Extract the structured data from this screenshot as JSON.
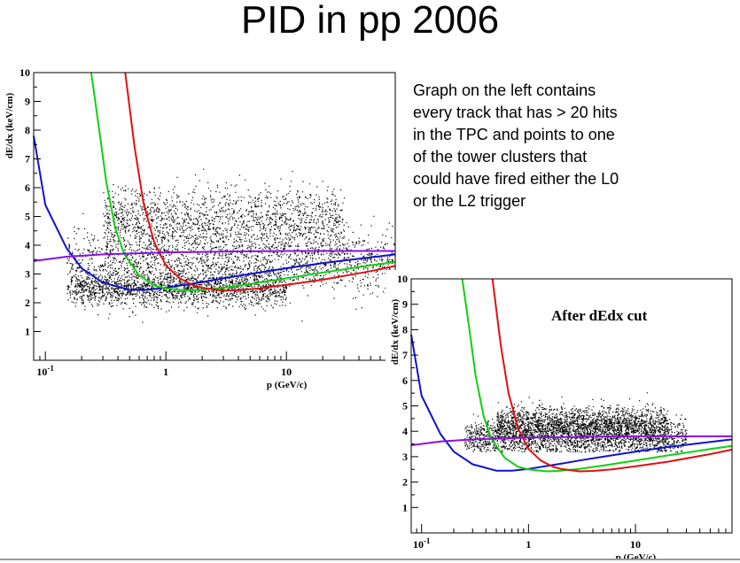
{
  "slide": {
    "title": "PID in pp 2006",
    "description_lines": [
      "Graph on the left contains",
      "every track that has > 20 hits",
      "in the TPC and points to one",
      "of the tower clusters that",
      "could have fired either the L0",
      "or the L2 trigger"
    ]
  },
  "colors": {
    "points": "#000000",
    "blue": "#1010d0",
    "green": "#10d010",
    "red": "#e01010",
    "purple": "#8a10e0"
  },
  "chart_data": [
    {
      "type": "scatter",
      "title": "",
      "xlabel": "p (GeV/c)",
      "ylabel": "dE/dx (keV/cm)",
      "xscale": "log",
      "xlim": [
        0.08,
        80
      ],
      "ylim": [
        0,
        10
      ],
      "xticks": [
        "10^-1",
        "1",
        "10"
      ],
      "yticks": [
        "1",
        "2",
        "3",
        "4",
        "5",
        "6",
        "7",
        "8",
        "9",
        "10"
      ],
      "grid": false,
      "point_cloud": {
        "description_clusters": [
          {
            "x_range": [
              0.15,
              80
            ],
            "y_center": 3.4,
            "y_spread": 0.5
          },
          {
            "x_range": [
              0.15,
              10
            ],
            "y_center": 2.5,
            "y_spread": 0.3
          },
          {
            "x_range": [
              0.3,
              30
            ],
            "y_center": 4.8,
            "y_spread": 0.6
          }
        ]
      },
      "series": [
        {
          "color": "blue",
          "x": [
            0.08,
            0.1,
            0.15,
            0.2,
            0.3,
            0.5,
            0.7,
            1,
            2,
            3,
            5,
            10,
            20,
            50,
            80
          ],
          "y": [
            7.8,
            5.4,
            3.9,
            3.2,
            2.7,
            2.45,
            2.45,
            2.52,
            2.72,
            2.85,
            3.0,
            3.2,
            3.38,
            3.58,
            3.68
          ]
        },
        {
          "color": "green",
          "x": [
            0.24,
            0.28,
            0.32,
            0.38,
            0.45,
            0.6,
            0.8,
            1,
            1.5,
            2,
            3,
            5,
            10,
            20,
            50,
            80
          ],
          "y": [
            10,
            8.0,
            6.2,
            4.6,
            3.7,
            2.95,
            2.6,
            2.5,
            2.42,
            2.45,
            2.52,
            2.65,
            2.85,
            3.05,
            3.3,
            3.42
          ]
        },
        {
          "color": "red",
          "x": [
            0.46,
            0.55,
            0.65,
            0.8,
            1,
            1.3,
            1.7,
            2,
            3,
            4,
            6,
            10,
            20,
            50,
            80
          ],
          "y": [
            10,
            7.4,
            5.5,
            4.1,
            3.3,
            2.85,
            2.6,
            2.52,
            2.42,
            2.44,
            2.5,
            2.62,
            2.8,
            3.1,
            3.28
          ]
        },
        {
          "color": "purple",
          "x": [
            0.08,
            0.15,
            0.3,
            0.6,
            1,
            3,
            10,
            30,
            80
          ],
          "y": [
            3.45,
            3.6,
            3.68,
            3.72,
            3.75,
            3.78,
            3.8,
            3.8,
            3.8
          ]
        }
      ]
    },
    {
      "type": "scatter",
      "title": "",
      "annotation": "After dEdx cut",
      "xlabel": "p (GeV/c)",
      "ylabel": "dE/dx (keV/cm)",
      "xscale": "log",
      "xlim": [
        0.08,
        80
      ],
      "ylim": [
        0,
        10
      ],
      "xticks": [
        "10^-1",
        "1",
        "10"
      ],
      "yticks": [
        "1",
        "2",
        "3",
        "4",
        "5",
        "6",
        "7",
        "8",
        "9",
        "10"
      ],
      "grid": false,
      "point_cloud": {
        "description_clusters": [
          {
            "x_range": [
              0.25,
              30
            ],
            "y_center": 3.75,
            "y_spread": 0.35
          },
          {
            "x_range": [
              0.5,
              20
            ],
            "y_center": 4.3,
            "y_spread": 0.35
          }
        ],
        "y_min_cut": 3.2
      },
      "series": [
        {
          "color": "blue",
          "x": [
            0.08,
            0.1,
            0.15,
            0.2,
            0.3,
            0.5,
            0.7,
            1,
            2,
            3,
            5,
            10,
            20,
            50,
            80
          ],
          "y": [
            7.8,
            5.4,
            3.9,
            3.2,
            2.7,
            2.45,
            2.45,
            2.52,
            2.72,
            2.85,
            3.0,
            3.2,
            3.38,
            3.58,
            3.68
          ]
        },
        {
          "color": "green",
          "x": [
            0.24,
            0.28,
            0.32,
            0.38,
            0.45,
            0.6,
            0.8,
            1,
            1.5,
            2,
            3,
            5,
            10,
            20,
            50,
            80
          ],
          "y": [
            10,
            8.0,
            6.2,
            4.6,
            3.7,
            2.95,
            2.6,
            2.5,
            2.42,
            2.45,
            2.52,
            2.65,
            2.85,
            3.05,
            3.3,
            3.42
          ]
        },
        {
          "color": "red",
          "x": [
            0.46,
            0.55,
            0.65,
            0.8,
            1,
            1.3,
            1.7,
            2,
            3,
            4,
            6,
            10,
            20,
            50,
            80
          ],
          "y": [
            10,
            7.4,
            5.5,
            4.1,
            3.3,
            2.85,
            2.6,
            2.52,
            2.42,
            2.44,
            2.5,
            2.62,
            2.8,
            3.1,
            3.28
          ]
        },
        {
          "color": "purple",
          "x": [
            0.08,
            0.15,
            0.3,
            0.6,
            1,
            3,
            10,
            30,
            80
          ],
          "y": [
            3.45,
            3.6,
            3.68,
            3.72,
            3.75,
            3.78,
            3.8,
            3.8,
            3.8
          ]
        }
      ]
    }
  ]
}
